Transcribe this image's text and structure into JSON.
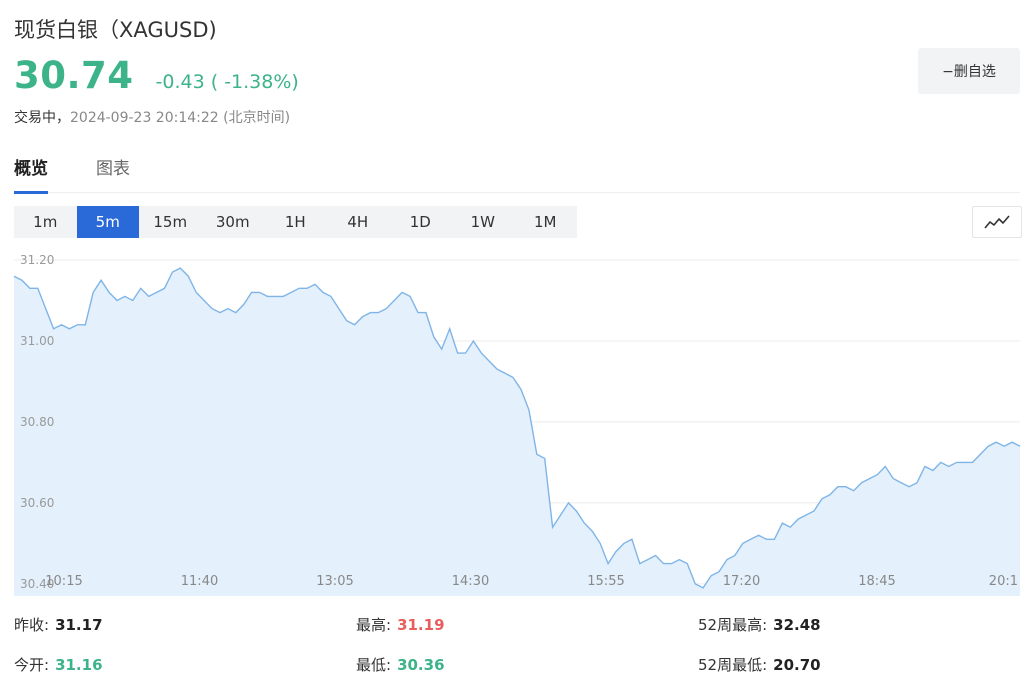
{
  "header": {
    "title": "现货白银（XAGUSD)",
    "price": "30.74",
    "change": "-0.43 ( -1.38%)",
    "status_label": "交易中，",
    "timestamp": "2024-09-23 20:14:22 (北京时间)",
    "watchlist_button": "−删自选"
  },
  "tabs": [
    {
      "label": "概览",
      "active": true
    },
    {
      "label": "图表",
      "active": false
    }
  ],
  "periods": [
    {
      "label": "1m",
      "active": false
    },
    {
      "label": "5m",
      "active": true
    },
    {
      "label": "15m",
      "active": false
    },
    {
      "label": "30m",
      "active": false
    },
    {
      "label": "1H",
      "active": false
    },
    {
      "label": "4H",
      "active": false
    },
    {
      "label": "1D",
      "active": false
    },
    {
      "label": "1W",
      "active": false
    },
    {
      "label": "1M",
      "active": false
    }
  ],
  "chart_type_icon": "line-chart-icon",
  "colors": {
    "up_green": "#3db389",
    "down_red": "#e85d5d",
    "accent_blue": "#2a6ad8",
    "line": "#7fb5e6",
    "area": "#e4f0fc"
  },
  "chart_data": {
    "type": "area",
    "ylim": [
      30.37,
      31.2
    ],
    "y_ticks": [
      "31.20",
      "31.00",
      "30.80",
      "30.60",
      "30.40"
    ],
    "x_ticks": [
      "10:15",
      "11:40",
      "13:05",
      "14:30",
      "15:55",
      "17:20",
      "18:45",
      "20:1"
    ],
    "values": [
      31.16,
      31.15,
      31.13,
      31.13,
      31.08,
      31.03,
      31.04,
      31.03,
      31.04,
      31.04,
      31.12,
      31.15,
      31.12,
      31.1,
      31.11,
      31.1,
      31.13,
      31.11,
      31.12,
      31.13,
      31.17,
      31.18,
      31.16,
      31.12,
      31.1,
      31.08,
      31.07,
      31.08,
      31.07,
      31.09,
      31.12,
      31.12,
      31.11,
      31.11,
      31.11,
      31.12,
      31.13,
      31.13,
      31.14,
      31.12,
      31.11,
      31.08,
      31.05,
      31.04,
      31.06,
      31.07,
      31.07,
      31.08,
      31.1,
      31.12,
      31.11,
      31.07,
      31.07,
      31.01,
      30.98,
      31.03,
      30.97,
      30.97,
      31.0,
      30.97,
      30.95,
      30.93,
      30.92,
      30.91,
      30.88,
      30.83,
      30.72,
      30.71,
      30.54,
      30.57,
      30.6,
      30.58,
      30.55,
      30.53,
      30.5,
      30.45,
      30.48,
      30.5,
      30.51,
      30.45,
      30.46,
      30.47,
      30.45,
      30.45,
      30.46,
      30.45,
      30.4,
      30.39,
      30.42,
      30.43,
      30.46,
      30.47,
      30.5,
      30.51,
      30.52,
      30.51,
      30.51,
      30.55,
      30.54,
      30.56,
      30.57,
      30.58,
      30.61,
      30.62,
      30.64,
      30.64,
      30.63,
      30.65,
      30.66,
      30.67,
      30.69,
      30.66,
      30.65,
      30.64,
      30.65,
      30.69,
      30.68,
      30.7,
      30.69,
      30.7,
      30.7,
      30.7,
      30.72,
      30.74,
      30.75,
      30.74,
      30.75,
      30.74
    ]
  },
  "stats": [
    {
      "label": "昨收:",
      "value": "31.17",
      "tone": "dark"
    },
    {
      "label": "最高:",
      "value": "31.19",
      "tone": "red"
    },
    {
      "label": "52周最高:",
      "value": "32.48",
      "tone": "dark"
    },
    {
      "label": "今开:",
      "value": "31.16",
      "tone": "green"
    },
    {
      "label": "最低:",
      "value": "30.36",
      "tone": "green"
    },
    {
      "label": "52周最低:",
      "value": "20.70",
      "tone": "dark"
    }
  ]
}
